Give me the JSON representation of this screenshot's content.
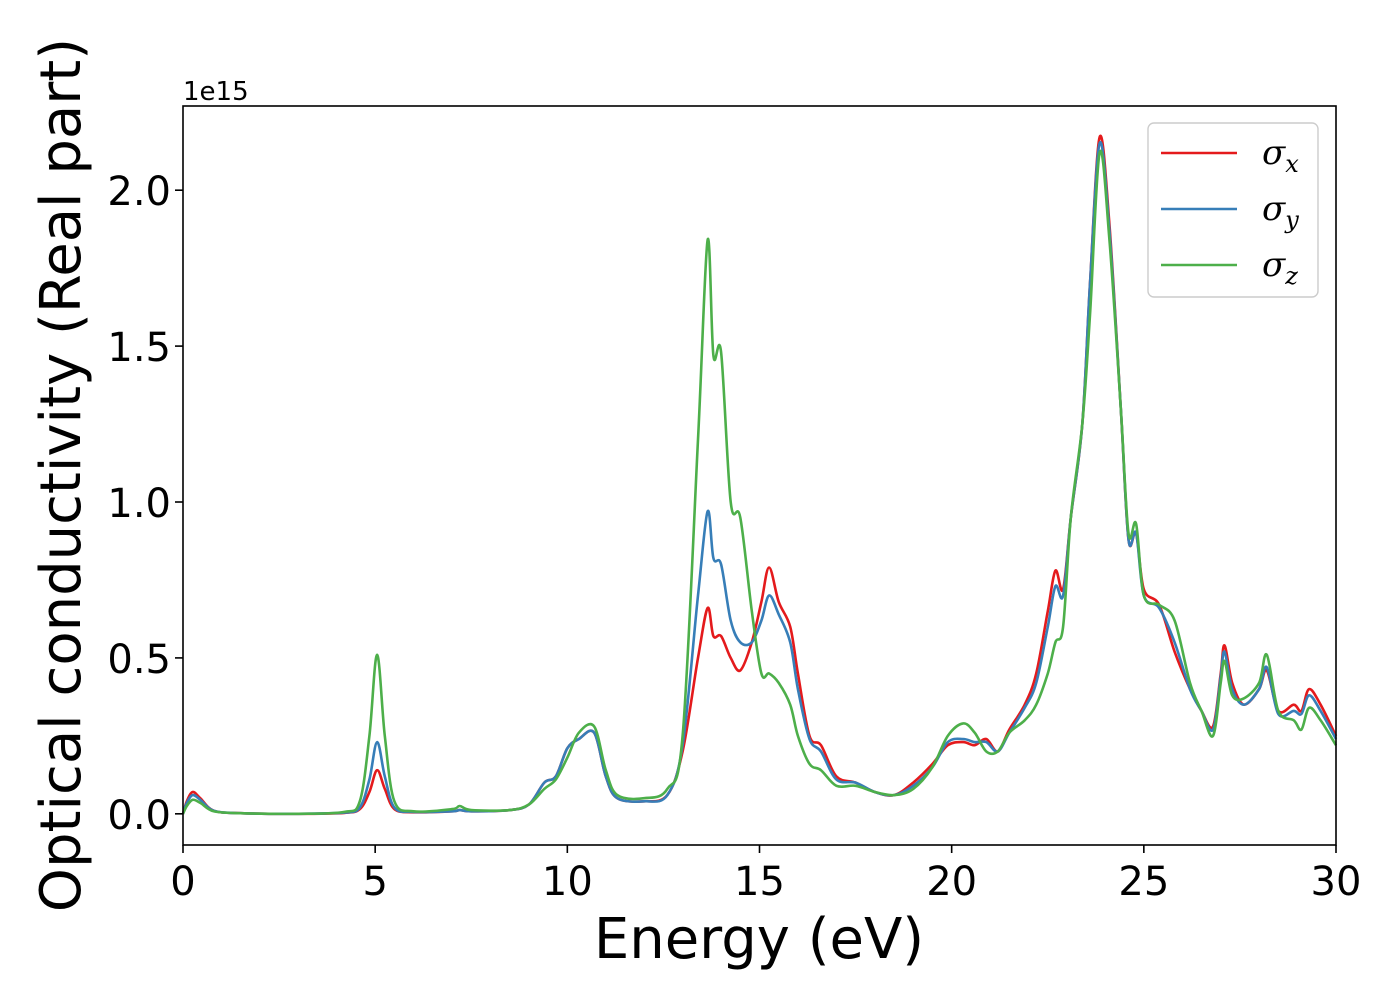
{
  "chart_data": {
    "type": "line",
    "title": "",
    "xlabel": "Energy (eV)",
    "ylabel": "Optical conductivity (Real part)",
    "y_offset_text": "1e15",
    "xlim": [
      0,
      30
    ],
    "ylim": [
      -0.1,
      2.27
    ],
    "xticks": [
      0,
      5,
      10,
      15,
      20,
      25,
      30
    ],
    "yticks": [
      0.0,
      0.5,
      1.0,
      1.5,
      2.0
    ],
    "xtick_labels": [
      "0",
      "5",
      "10",
      "15",
      "20",
      "25",
      "30"
    ],
    "ytick_labels": [
      "0.0",
      "0.5",
      "1.0",
      "1.5",
      "2.0"
    ],
    "grid": false,
    "legend_position": "top-right",
    "series": [
      {
        "name": "σx",
        "symbol": "σ",
        "subscript": "x",
        "color": "#e41a1c",
        "points": [
          [
            0,
            0.0
          ],
          [
            0.1,
            0.04
          ],
          [
            0.25,
            0.07
          ],
          [
            0.45,
            0.05
          ],
          [
            0.8,
            0.01
          ],
          [
            1.5,
            0.002
          ],
          [
            3,
            0.0
          ],
          [
            4.2,
            0.003
          ],
          [
            4.6,
            0.015
          ],
          [
            4.85,
            0.07
          ],
          [
            5.05,
            0.14
          ],
          [
            5.25,
            0.08
          ],
          [
            5.5,
            0.015
          ],
          [
            6,
            0.005
          ],
          [
            7,
            0.008
          ],
          [
            7.2,
            0.012
          ],
          [
            7.5,
            0.008
          ],
          [
            8.5,
            0.012
          ],
          [
            9.0,
            0.03
          ],
          [
            9.4,
            0.1
          ],
          [
            9.7,
            0.12
          ],
          [
            10.0,
            0.21
          ],
          [
            10.3,
            0.24
          ],
          [
            10.7,
            0.26
          ],
          [
            11.0,
            0.12
          ],
          [
            11.3,
            0.05
          ],
          [
            12.0,
            0.04
          ],
          [
            12.6,
            0.06
          ],
          [
            13.0,
            0.2
          ],
          [
            13.4,
            0.5
          ],
          [
            13.65,
            0.66
          ],
          [
            13.8,
            0.57
          ],
          [
            14.0,
            0.57
          ],
          [
            14.25,
            0.5
          ],
          [
            14.5,
            0.46
          ],
          [
            14.8,
            0.55
          ],
          [
            15.05,
            0.68
          ],
          [
            15.25,
            0.79
          ],
          [
            15.5,
            0.68
          ],
          [
            15.8,
            0.6
          ],
          [
            16.0,
            0.45
          ],
          [
            16.3,
            0.25
          ],
          [
            16.6,
            0.22
          ],
          [
            17.0,
            0.12
          ],
          [
            17.5,
            0.1
          ],
          [
            18.0,
            0.07
          ],
          [
            18.5,
            0.06
          ],
          [
            19.0,
            0.1
          ],
          [
            19.5,
            0.16
          ],
          [
            19.9,
            0.22
          ],
          [
            20.3,
            0.23
          ],
          [
            20.6,
            0.22
          ],
          [
            20.9,
            0.24
          ],
          [
            21.2,
            0.2
          ],
          [
            21.5,
            0.27
          ],
          [
            21.9,
            0.35
          ],
          [
            22.2,
            0.45
          ],
          [
            22.5,
            0.65
          ],
          [
            22.7,
            0.78
          ],
          [
            22.9,
            0.72
          ],
          [
            23.1,
            0.95
          ],
          [
            23.4,
            1.25
          ],
          [
            23.6,
            1.7
          ],
          [
            23.85,
            2.17
          ],
          [
            24.1,
            1.9
          ],
          [
            24.4,
            1.3
          ],
          [
            24.6,
            0.88
          ],
          [
            24.8,
            0.9
          ],
          [
            25.0,
            0.72
          ],
          [
            25.4,
            0.67
          ],
          [
            25.8,
            0.52
          ],
          [
            26.2,
            0.4
          ],
          [
            26.5,
            0.33
          ],
          [
            26.8,
            0.28
          ],
          [
            27.0,
            0.45
          ],
          [
            27.1,
            0.54
          ],
          [
            27.3,
            0.42
          ],
          [
            27.6,
            0.35
          ],
          [
            28.0,
            0.4
          ],
          [
            28.2,
            0.46
          ],
          [
            28.5,
            0.33
          ],
          [
            28.9,
            0.35
          ],
          [
            29.1,
            0.33
          ],
          [
            29.3,
            0.4
          ],
          [
            29.6,
            0.35
          ],
          [
            30.0,
            0.25
          ]
        ]
      },
      {
        "name": "σy",
        "symbol": "σ",
        "subscript": "y",
        "color": "#377eb8",
        "points": [
          [
            0,
            0.0
          ],
          [
            0.1,
            0.035
          ],
          [
            0.25,
            0.06
          ],
          [
            0.45,
            0.045
          ],
          [
            0.8,
            0.01
          ],
          [
            1.5,
            0.002
          ],
          [
            3,
            0.0
          ],
          [
            4.2,
            0.004
          ],
          [
            4.6,
            0.02
          ],
          [
            4.85,
            0.11
          ],
          [
            5.05,
            0.23
          ],
          [
            5.25,
            0.12
          ],
          [
            5.5,
            0.02
          ],
          [
            6,
            0.006
          ],
          [
            7,
            0.008
          ],
          [
            7.2,
            0.012
          ],
          [
            7.5,
            0.008
          ],
          [
            8.5,
            0.012
          ],
          [
            9.0,
            0.03
          ],
          [
            9.4,
            0.1
          ],
          [
            9.7,
            0.12
          ],
          [
            10.0,
            0.21
          ],
          [
            10.3,
            0.24
          ],
          [
            10.7,
            0.26
          ],
          [
            11.0,
            0.12
          ],
          [
            11.3,
            0.05
          ],
          [
            12.0,
            0.04
          ],
          [
            12.6,
            0.06
          ],
          [
            13.0,
            0.22
          ],
          [
            13.4,
            0.7
          ],
          [
            13.65,
            0.97
          ],
          [
            13.8,
            0.82
          ],
          [
            14.0,
            0.8
          ],
          [
            14.25,
            0.62
          ],
          [
            14.5,
            0.55
          ],
          [
            14.8,
            0.55
          ],
          [
            15.05,
            0.62
          ],
          [
            15.25,
            0.7
          ],
          [
            15.5,
            0.64
          ],
          [
            15.8,
            0.55
          ],
          [
            16.0,
            0.4
          ],
          [
            16.3,
            0.24
          ],
          [
            16.6,
            0.2
          ],
          [
            17.0,
            0.11
          ],
          [
            17.5,
            0.1
          ],
          [
            18.0,
            0.07
          ],
          [
            18.5,
            0.06
          ],
          [
            19.0,
            0.09
          ],
          [
            19.5,
            0.15
          ],
          [
            19.9,
            0.23
          ],
          [
            20.3,
            0.24
          ],
          [
            20.6,
            0.23
          ],
          [
            20.9,
            0.23
          ],
          [
            21.2,
            0.2
          ],
          [
            21.5,
            0.26
          ],
          [
            21.9,
            0.34
          ],
          [
            22.2,
            0.42
          ],
          [
            22.5,
            0.6
          ],
          [
            22.7,
            0.73
          ],
          [
            22.9,
            0.7
          ],
          [
            23.1,
            0.95
          ],
          [
            23.4,
            1.25
          ],
          [
            23.6,
            1.7
          ],
          [
            23.85,
            2.15
          ],
          [
            24.1,
            1.88
          ],
          [
            24.4,
            1.3
          ],
          [
            24.6,
            0.88
          ],
          [
            24.8,
            0.9
          ],
          [
            25.0,
            0.7
          ],
          [
            25.4,
            0.66
          ],
          [
            25.8,
            0.55
          ],
          [
            26.2,
            0.4
          ],
          [
            26.5,
            0.33
          ],
          [
            26.8,
            0.27
          ],
          [
            27.0,
            0.44
          ],
          [
            27.1,
            0.52
          ],
          [
            27.3,
            0.4
          ],
          [
            27.6,
            0.35
          ],
          [
            28.0,
            0.4
          ],
          [
            28.2,
            0.47
          ],
          [
            28.5,
            0.32
          ],
          [
            28.9,
            0.33
          ],
          [
            29.1,
            0.32
          ],
          [
            29.3,
            0.38
          ],
          [
            29.6,
            0.33
          ],
          [
            30.0,
            0.24
          ]
        ]
      },
      {
        "name": "σz",
        "symbol": "σ",
        "subscript": "z",
        "color": "#4daf4a",
        "points": [
          [
            0,
            0.0
          ],
          [
            0.1,
            0.025
          ],
          [
            0.25,
            0.045
          ],
          [
            0.45,
            0.035
          ],
          [
            0.8,
            0.008
          ],
          [
            1.5,
            0.002
          ],
          [
            3,
            0.0
          ],
          [
            4.2,
            0.006
          ],
          [
            4.6,
            0.04
          ],
          [
            4.85,
            0.25
          ],
          [
            5.05,
            0.51
          ],
          [
            5.25,
            0.25
          ],
          [
            5.5,
            0.04
          ],
          [
            6,
            0.008
          ],
          [
            7,
            0.015
          ],
          [
            7.2,
            0.025
          ],
          [
            7.5,
            0.012
          ],
          [
            8.5,
            0.012
          ],
          [
            9.0,
            0.03
          ],
          [
            9.4,
            0.08
          ],
          [
            9.7,
            0.11
          ],
          [
            10.0,
            0.18
          ],
          [
            10.3,
            0.26
          ],
          [
            10.7,
            0.28
          ],
          [
            11.0,
            0.14
          ],
          [
            11.3,
            0.06
          ],
          [
            12.0,
            0.05
          ],
          [
            12.6,
            0.08
          ],
          [
            13.0,
            0.25
          ],
          [
            13.4,
            1.2
          ],
          [
            13.65,
            1.84
          ],
          [
            13.8,
            1.47
          ],
          [
            14.0,
            1.48
          ],
          [
            14.25,
            1.0
          ],
          [
            14.5,
            0.95
          ],
          [
            14.8,
            0.65
          ],
          [
            15.05,
            0.45
          ],
          [
            15.25,
            0.45
          ],
          [
            15.5,
            0.42
          ],
          [
            15.8,
            0.35
          ],
          [
            16.0,
            0.25
          ],
          [
            16.3,
            0.16
          ],
          [
            16.6,
            0.14
          ],
          [
            17.0,
            0.09
          ],
          [
            17.5,
            0.09
          ],
          [
            18.0,
            0.07
          ],
          [
            18.5,
            0.06
          ],
          [
            19.0,
            0.08
          ],
          [
            19.5,
            0.15
          ],
          [
            19.9,
            0.25
          ],
          [
            20.3,
            0.29
          ],
          [
            20.6,
            0.26
          ],
          [
            20.9,
            0.2
          ],
          [
            21.2,
            0.2
          ],
          [
            21.5,
            0.26
          ],
          [
            21.9,
            0.3
          ],
          [
            22.2,
            0.35
          ],
          [
            22.5,
            0.45
          ],
          [
            22.7,
            0.55
          ],
          [
            22.9,
            0.6
          ],
          [
            23.1,
            0.95
          ],
          [
            23.4,
            1.25
          ],
          [
            23.6,
            1.6
          ],
          [
            23.85,
            2.12
          ],
          [
            24.1,
            1.85
          ],
          [
            24.4,
            1.3
          ],
          [
            24.6,
            0.9
          ],
          [
            24.8,
            0.93
          ],
          [
            25.0,
            0.7
          ],
          [
            25.4,
            0.67
          ],
          [
            25.8,
            0.62
          ],
          [
            26.2,
            0.42
          ],
          [
            26.5,
            0.33
          ],
          [
            26.8,
            0.25
          ],
          [
            27.0,
            0.42
          ],
          [
            27.1,
            0.49
          ],
          [
            27.3,
            0.38
          ],
          [
            27.6,
            0.37
          ],
          [
            28.0,
            0.42
          ],
          [
            28.2,
            0.51
          ],
          [
            28.5,
            0.33
          ],
          [
            28.9,
            0.3
          ],
          [
            29.1,
            0.27
          ],
          [
            29.3,
            0.34
          ],
          [
            29.6,
            0.3
          ],
          [
            30.0,
            0.22
          ]
        ]
      }
    ]
  }
}
